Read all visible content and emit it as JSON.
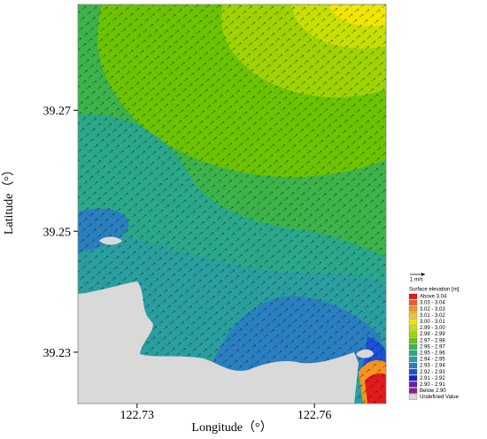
{
  "chart_data": {
    "type": "contour-map",
    "x_label": "Longitude（°）",
    "y_label": "Latitude（°）",
    "xlim": [
      122.72,
      122.7721
    ],
    "xticks": [
      122.73,
      122.76
    ],
    "ylim": [
      39.2215,
      39.2875
    ],
    "yticks": [
      39.23,
      39.25,
      39.27
    ],
    "vector_scale_label": "1 m/s",
    "legend_title": "Surface elevation [m]",
    "legend": [
      {
        "label": "Above 3.04",
        "color": "#e31a1c"
      },
      {
        "label": "3.03 - 3.04",
        "color": "#f05a28"
      },
      {
        "label": "3.02 - 3.03",
        "color": "#f7941d"
      },
      {
        "label": "3.01 - 3.02",
        "color": "#f9c80e"
      },
      {
        "label": "3.00 - 3.01",
        "color": "#f2e600"
      },
      {
        "label": "2.99 - 3.00",
        "color": "#c8e000"
      },
      {
        "label": "2.98 - 2.99",
        "color": "#9fd400"
      },
      {
        "label": "2.97 - 2.98",
        "color": "#6cc400"
      },
      {
        "label": "2.96 - 2.97",
        "color": "#3cb44a"
      },
      {
        "label": "2.95 - 2.96",
        "color": "#2aa88a"
      },
      {
        "label": "2.94 - 2.95",
        "color": "#2a9fa0"
      },
      {
        "label": "2.93 - 2.94",
        "color": "#2a7fc0"
      },
      {
        "label": "2.92 - 2.93",
        "color": "#1a50d8"
      },
      {
        "label": "2.91 - 2.92",
        "color": "#1a20c8"
      },
      {
        "label": "2.90 - 2.91",
        "color": "#6020a0"
      },
      {
        "label": "Below 2.90",
        "color": "#8a2090"
      },
      {
        "label": "Undefined Value",
        "color": "#d9d9d9"
      }
    ]
  }
}
